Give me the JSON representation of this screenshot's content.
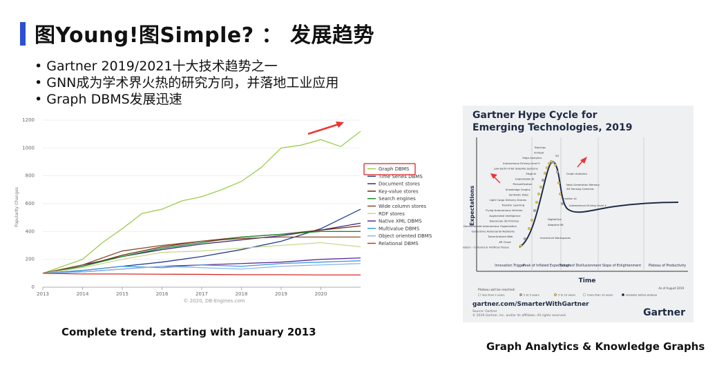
{
  "slide": {
    "title": "图Young!图Simple? ： 发展趋势",
    "bullets": [
      "• Gartner 2019/2021十大技术趋势之一",
      "• GNN成为学术界火热的研究方向，并落地工业应用",
      "• Graph DBMS发展迅速"
    ],
    "caption_left": "Complete trend, starting with January 2013",
    "caption_right": "Graph Analytics & Knowledge Graphs"
  },
  "chart_data": [
    {
      "type": "line",
      "ylabel": "Popularity Changes",
      "ylim": [
        0,
        1200
      ],
      "yticks": [
        "1200",
        "1000",
        "800",
        "600",
        "400",
        "200",
        "0"
      ],
      "xticks": [
        "2013",
        "2014",
        "2015",
        "2016",
        "2017",
        "2018",
        "2019",
        "2020"
      ],
      "xlim": [
        2013,
        2021
      ],
      "copyright": "© 2020, DB-Engines.com",
      "highlight": "Graph DBMS",
      "series": [
        {
          "name": "Graph DBMS",
          "color": "#9acd4c",
          "x": [
            2013,
            2013.5,
            2014,
            2014.5,
            2015,
            2015.5,
            2016,
            2016.5,
            2017,
            2017.5,
            2018,
            2018.5,
            2019,
            2019.5,
            2020,
            2020.5,
            2021
          ],
          "values": [
            100,
            150,
            200,
            320,
            420,
            530,
            560,
            620,
            650,
            700,
            760,
            860,
            1000,
            1020,
            1060,
            1010,
            1120
          ]
        },
        {
          "name": "Time Series DBMS",
          "color": "#1f3a8a",
          "x": [
            2013,
            2014,
            2015,
            2016,
            2017,
            2018,
            2019,
            2020,
            2021
          ],
          "values": [
            100,
            120,
            150,
            180,
            220,
            270,
            330,
            420,
            560
          ]
        },
        {
          "name": "Document stores",
          "color": "#3b2a7a",
          "x": [
            2013,
            2014,
            2015,
            2016,
            2017,
            2018,
            2019,
            2020,
            2021
          ],
          "values": [
            100,
            160,
            220,
            270,
            310,
            340,
            370,
            410,
            460
          ]
        },
        {
          "name": "Key-value stores",
          "color": "#6b2a14",
          "x": [
            2013,
            2014,
            2015,
            2016,
            2017,
            2018,
            2019,
            2020,
            2021
          ],
          "values": [
            100,
            150,
            230,
            290,
            330,
            360,
            380,
            410,
            440
          ]
        },
        {
          "name": "Search engines",
          "color": "#1a8a2a",
          "x": [
            2013,
            2014,
            2015,
            2016,
            2017,
            2018,
            2019,
            2020,
            2021
          ],
          "values": [
            100,
            150,
            220,
            280,
            320,
            360,
            380,
            400,
            400
          ]
        },
        {
          "name": "Wide column stores",
          "color": "#8a4a2a",
          "x": [
            2013,
            2014,
            2015,
            2016,
            2017,
            2018,
            2019,
            2020,
            2021
          ],
          "values": [
            100,
            160,
            260,
            300,
            330,
            350,
            360,
            360,
            360
          ]
        },
        {
          "name": "RDF stores",
          "color": "#c8d88a",
          "x": [
            2013,
            2014,
            2015,
            2016,
            2017,
            2018,
            2019,
            2020,
            2021
          ],
          "values": [
            100,
            140,
            200,
            250,
            260,
            280,
            300,
            320,
            290
          ]
        },
        {
          "name": "Native XML DBMS",
          "color": "#5a2a9a",
          "x": [
            2013,
            2014,
            2015,
            2016,
            2017,
            2018,
            2019,
            2020,
            2021
          ],
          "values": [
            100,
            110,
            130,
            150,
            160,
            170,
            180,
            200,
            210
          ]
        },
        {
          "name": "Multivalue DBMS",
          "color": "#3a9adc",
          "x": [
            2013,
            2014,
            2015,
            2016,
            2017,
            2018,
            2019,
            2020,
            2021
          ],
          "values": [
            100,
            120,
            150,
            140,
            160,
            150,
            170,
            180,
            190
          ]
        },
        {
          "name": "Object oriented DBMS",
          "color": "#8ab8e8",
          "x": [
            2013,
            2014,
            2015,
            2016,
            2017,
            2018,
            2019,
            2020,
            2021
          ],
          "values": [
            100,
            110,
            130,
            150,
            140,
            130,
            150,
            160,
            170
          ]
        },
        {
          "name": "Relational DBMS",
          "color": "#d82a2a",
          "x": [
            2013,
            2014,
            2015,
            2016,
            2017,
            2018,
            2019,
            2020,
            2021
          ],
          "values": [
            100,
            95,
            95,
            93,
            92,
            90,
            90,
            88,
            88
          ]
        }
      ]
    },
    {
      "type": "line",
      "title_line1": "Gartner Hype Cycle for",
      "title_line2": "Emerging Technologies, 2019",
      "ylabel": "Expectations",
      "xlabel": "Time",
      "phases": [
        "Innovation Trigger",
        "Peak of Inflated Expectations",
        "Trough of Disillusionment",
        "Slope of Enlightenment",
        "Plateau of Productivity"
      ],
      "plateau_heading": "Plateau will be reached:",
      "plateau_legend": [
        "less than 2 years",
        "2 to 5 years",
        "5 to 10 years",
        "more than 10 years",
        "obsolete before plateau"
      ],
      "as_of": "As of August 2019",
      "technologies_left": [
        "Biochips",
        "AI PaaS",
        "Edge Analytics",
        "Autonomous Driving Level 5",
        "Low-Earth-Orbit Satellite Systems",
        "Edge AI",
        "Explainable AI",
        "Personification",
        "Knowledge Graphs",
        "Synthetic Data",
        "Light Cargo Delivery Drones",
        "Transfer Learning",
        "Flying Autonomous Vehicles",
        "Augmented Intelligence",
        "Nanoscale 3D Printing",
        "Decentralized Autonomous Organization",
        "Generative Adversarial Networks",
        "Decentralized Web",
        "AR Cloud",
        "Biotech - Cultured or Artificial Tissue"
      ],
      "technologies_right": [
        "5G",
        "Graph Analytics",
        "Next-Generation Memory",
        "3D Sensing Cameras",
        "Emotion AI",
        "Autonomous Driving Level 4",
        "DigitalOps",
        "Adaptive ML",
        "Immersive Workspaces"
      ],
      "footer_url": "gartner.com/SmarterWithGartner",
      "source": "Source: Gartner",
      "copyright": "© 2019 Gartner, Inc. and/or its affiliates. All rights reserved.",
      "brand": "Gartner"
    }
  ]
}
